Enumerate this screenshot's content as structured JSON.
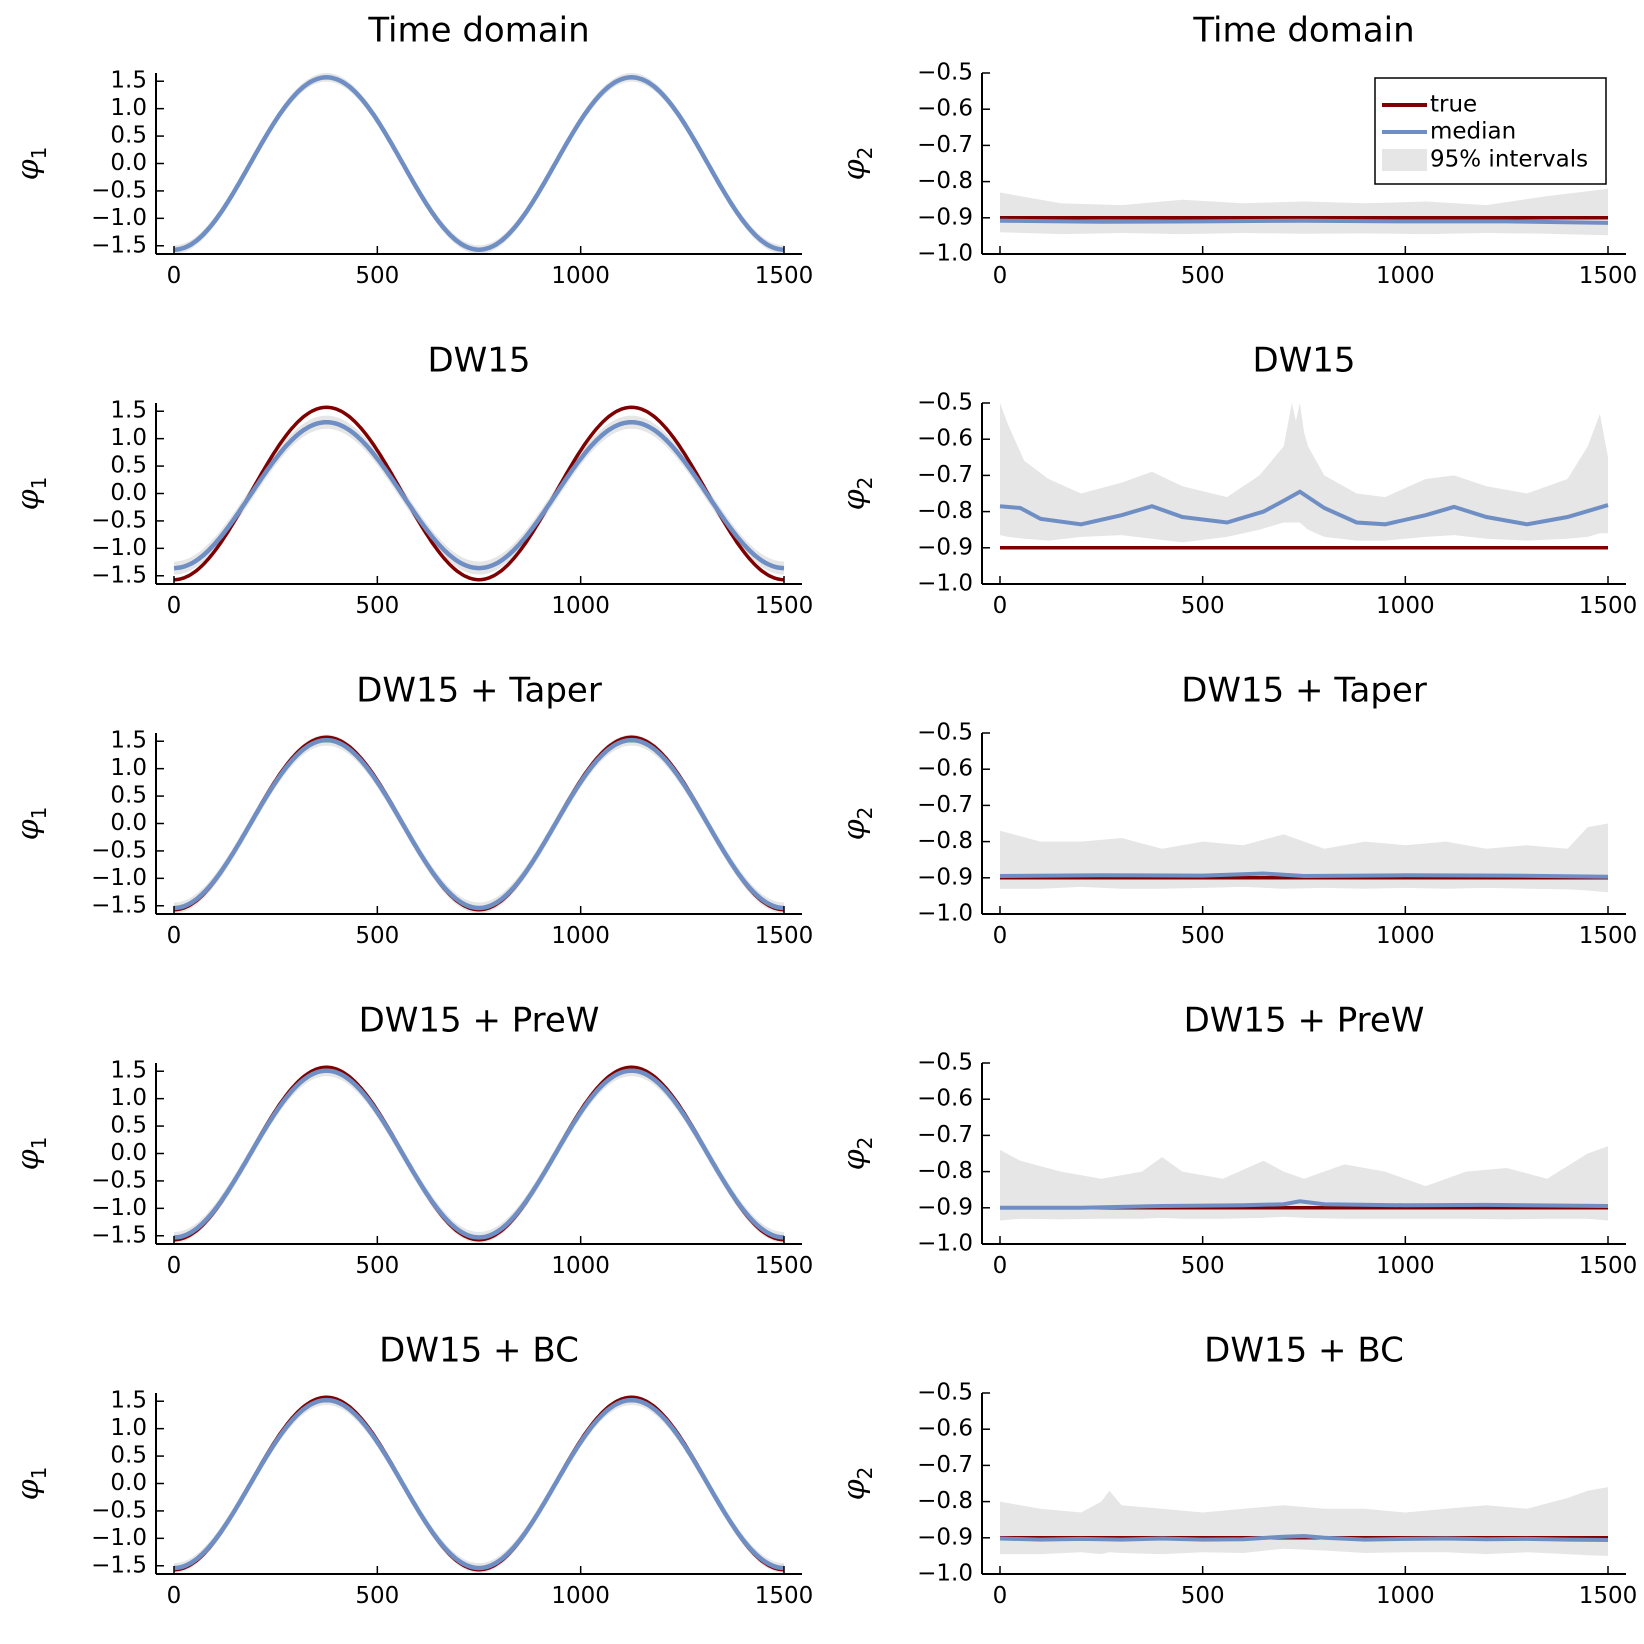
{
  "colors": {
    "true": "#7f0000",
    "median": "#6f8fc4",
    "interval": "#e6e6e6"
  },
  "legend": {
    "entries": [
      "true",
      "median",
      "95% intervals"
    ],
    "placement": "top-right of first right panel"
  },
  "chart_data": [
    {
      "type": "line",
      "title": "Time domain",
      "ylabel": "φ",
      "ylabel_sub": "1",
      "xlim": [
        0,
        1500
      ],
      "ylim": [
        -1.65,
        1.65
      ],
      "xticks": [
        0,
        500,
        1000,
        1500
      ],
      "yticks": [
        1.5,
        1.0,
        0.5,
        0.0,
        -0.5,
        -1.0,
        -1.5
      ],
      "ytick_labels": [
        "1.5",
        "1.0",
        "0.5",
        "0.0",
        "−0.5",
        "−1.0",
        "−1.5"
      ],
      "xtick_labels": [
        "0",
        "500",
        "1000",
        "1500"
      ],
      "series": [
        {
          "name": "true",
          "model": "cos",
          "amplitude": 1.5708
        },
        {
          "name": "median",
          "model": "cos",
          "amplitude": 1.5708,
          "bias": 0.0
        },
        {
          "name": "95% intervals",
          "half_width": 0.08
        }
      ]
    },
    {
      "type": "line",
      "title": "Time domain",
      "ylabel": "φ",
      "ylabel_sub": "2",
      "xlim": [
        0,
        1500
      ],
      "ylim": [
        -1.0,
        -0.5
      ],
      "xticks": [
        0,
        500,
        1000,
        1500
      ],
      "yticks": [
        -0.5,
        -0.6,
        -0.7,
        -0.8,
        -0.9,
        -1.0
      ],
      "ytick_labels": [
        "−0.5",
        "−0.6",
        "−0.7",
        "−0.8",
        "−0.9",
        "−1.0"
      ],
      "xtick_labels": [
        "0",
        "500",
        "1000",
        "1500"
      ],
      "show_legend": true,
      "true_value": -0.9,
      "median_x": [
        0,
        250,
        500,
        750,
        1000,
        1250,
        1500
      ],
      "median_y": [
        -0.908,
        -0.911,
        -0.91,
        -0.908,
        -0.91,
        -0.91,
        -0.914
      ],
      "band_x": [
        0,
        150,
        300,
        450,
        600,
        750,
        900,
        1050,
        1200,
        1350,
        1500
      ],
      "band_upper": [
        -0.83,
        -0.86,
        -0.865,
        -0.85,
        -0.86,
        -0.855,
        -0.86,
        -0.855,
        -0.865,
        -0.84,
        -0.82
      ],
      "band_lower": [
        -0.94,
        -0.945,
        -0.942,
        -0.945,
        -0.942,
        -0.944,
        -0.943,
        -0.945,
        -0.942,
        -0.944,
        -0.948
      ]
    },
    {
      "type": "line",
      "title": "DW15",
      "ylabel": "φ",
      "ylabel_sub": "1",
      "xlim": [
        0,
        1500
      ],
      "ylim": [
        -1.65,
        1.65
      ],
      "xticks": [
        0,
        500,
        1000,
        1500
      ],
      "yticks": [
        1.5,
        1.0,
        0.5,
        0.0,
        -0.5,
        -1.0,
        -1.5
      ],
      "ytick_labels": [
        "1.5",
        "1.0",
        "0.5",
        "0.0",
        "−0.5",
        "−1.0",
        "−1.5"
      ],
      "xtick_labels": [
        "0",
        "500",
        "1000",
        "1500"
      ],
      "series": [
        {
          "name": "true",
          "model": "cos",
          "amplitude": 1.5708
        },
        {
          "name": "median",
          "model": "cos",
          "amplitude": 1.33,
          "bias": -0.03
        },
        {
          "name": "95% intervals",
          "half_width": 0.12
        }
      ]
    },
    {
      "type": "line",
      "title": "DW15",
      "ylabel": "φ",
      "ylabel_sub": "2",
      "xlim": [
        0,
        1500
      ],
      "ylim": [
        -1.0,
        -0.5
      ],
      "xticks": [
        0,
        500,
        1000,
        1500
      ],
      "yticks": [
        -0.5,
        -0.6,
        -0.7,
        -0.8,
        -0.9,
        -1.0
      ],
      "ytick_labels": [
        "−0.5",
        "−0.6",
        "−0.7",
        "−0.8",
        "−0.9",
        "−1.0"
      ],
      "xtick_labels": [
        "0",
        "500",
        "1000",
        "1500"
      ],
      "true_value": -0.9,
      "median_x": [
        0,
        50,
        100,
        200,
        300,
        375,
        450,
        560,
        650,
        700,
        740,
        800,
        880,
        950,
        1050,
        1120,
        1200,
        1300,
        1400,
        1500
      ],
      "median_y": [
        -0.785,
        -0.79,
        -0.82,
        -0.835,
        -0.81,
        -0.785,
        -0.815,
        -0.83,
        -0.8,
        -0.77,
        -0.745,
        -0.79,
        -0.83,
        -0.835,
        -0.81,
        -0.787,
        -0.815,
        -0.835,
        -0.815,
        -0.782
      ],
      "band_x": [
        0,
        20,
        60,
        120,
        200,
        300,
        375,
        450,
        560,
        640,
        700,
        720,
        730,
        740,
        750,
        760,
        800,
        880,
        950,
        1050,
        1120,
        1200,
        1300,
        1400,
        1450,
        1480,
        1500
      ],
      "band_upper": [
        -0.5,
        -0.56,
        -0.66,
        -0.71,
        -0.75,
        -0.72,
        -0.69,
        -0.73,
        -0.76,
        -0.7,
        -0.62,
        -0.5,
        -0.55,
        -0.5,
        -0.58,
        -0.62,
        -0.7,
        -0.75,
        -0.76,
        -0.71,
        -0.7,
        -0.73,
        -0.75,
        -0.71,
        -0.62,
        -0.53,
        -0.65
      ],
      "band_lower": [
        -0.865,
        -0.87,
        -0.875,
        -0.88,
        -0.87,
        -0.865,
        -0.875,
        -0.885,
        -0.87,
        -0.85,
        -0.83,
        -0.83,
        -0.83,
        -0.83,
        -0.84,
        -0.85,
        -0.87,
        -0.88,
        -0.88,
        -0.87,
        -0.865,
        -0.875,
        -0.88,
        -0.875,
        -0.87,
        -0.86,
        -0.86
      ]
    },
    {
      "type": "line",
      "title": "DW15 + Taper",
      "ylabel": "φ",
      "ylabel_sub": "1",
      "xlim": [
        0,
        1500
      ],
      "ylim": [
        -1.65,
        1.65
      ],
      "xticks": [
        0,
        500,
        1000,
        1500
      ],
      "yticks": [
        1.5,
        1.0,
        0.5,
        0.0,
        -0.5,
        -1.0,
        -1.5
      ],
      "ytick_labels": [
        "1.5",
        "1.0",
        "0.5",
        "0.0",
        "−0.5",
        "−1.0",
        "−1.5"
      ],
      "xtick_labels": [
        "0",
        "500",
        "1000",
        "1500"
      ],
      "series": [
        {
          "name": "true",
          "model": "cos",
          "amplitude": 1.5708
        },
        {
          "name": "median",
          "model": "cos",
          "amplitude": 1.53,
          "bias": -0.01
        },
        {
          "name": "95% intervals",
          "half_width": 0.1
        }
      ]
    },
    {
      "type": "line",
      "title": "DW15 + Taper",
      "ylabel": "φ",
      "ylabel_sub": "2",
      "xlim": [
        0,
        1500
      ],
      "ylim": [
        -1.0,
        -0.5
      ],
      "xticks": [
        0,
        500,
        1000,
        1500
      ],
      "yticks": [
        -0.5,
        -0.6,
        -0.7,
        -0.8,
        -0.9,
        -1.0
      ],
      "ytick_labels": [
        "−0.5",
        "−0.6",
        "−0.7",
        "−0.8",
        "−0.9",
        "−1.0"
      ],
      "xtick_labels": [
        "0",
        "500",
        "1000",
        "1500"
      ],
      "true_value": -0.9,
      "median_x": [
        0,
        250,
        500,
        650,
        750,
        1000,
        1250,
        1500
      ],
      "median_y": [
        -0.895,
        -0.893,
        -0.894,
        -0.888,
        -0.895,
        -0.893,
        -0.894,
        -0.897
      ],
      "band_x": [
        0,
        100,
        200,
        300,
        400,
        500,
        600,
        700,
        800,
        900,
        1000,
        1100,
        1200,
        1300,
        1400,
        1450,
        1500
      ],
      "band_upper": [
        -0.77,
        -0.8,
        -0.8,
        -0.79,
        -0.82,
        -0.8,
        -0.81,
        -0.78,
        -0.82,
        -0.8,
        -0.81,
        -0.8,
        -0.82,
        -0.81,
        -0.82,
        -0.76,
        -0.75
      ],
      "band_lower": [
        -0.93,
        -0.93,
        -0.925,
        -0.93,
        -0.93,
        -0.928,
        -0.925,
        -0.93,
        -0.928,
        -0.93,
        -0.928,
        -0.93,
        -0.928,
        -0.93,
        -0.932,
        -0.935,
        -0.94
      ]
    },
    {
      "type": "line",
      "title": "DW15 + PreW",
      "ylabel": "φ",
      "ylabel_sub": "1",
      "xlim": [
        0,
        1500
      ],
      "ylim": [
        -1.65,
        1.65
      ],
      "xticks": [
        0,
        500,
        1000,
        1500
      ],
      "yticks": [
        1.5,
        1.0,
        0.5,
        0.0,
        -0.5,
        -1.0,
        -1.5
      ],
      "ytick_labels": [
        "1.5",
        "1.0",
        "0.5",
        "0.0",
        "−0.5",
        "−1.0",
        "−1.5"
      ],
      "xtick_labels": [
        "0",
        "500",
        "1000",
        "1500"
      ],
      "series": [
        {
          "name": "true",
          "model": "cos",
          "amplitude": 1.5708
        },
        {
          "name": "median",
          "model": "cos",
          "amplitude": 1.52,
          "bias": -0.01
        },
        {
          "name": "95% intervals",
          "half_width": 0.1
        }
      ]
    },
    {
      "type": "line",
      "title": "DW15 + PreW",
      "ylabel": "φ",
      "ylabel_sub": "2",
      "xlim": [
        0,
        1500
      ],
      "ylim": [
        -1.0,
        -0.5
      ],
      "xticks": [
        0,
        500,
        1000,
        1500
      ],
      "yticks": [
        -0.5,
        -0.6,
        -0.7,
        -0.8,
        -0.9,
        -1.0
      ],
      "ytick_labels": [
        "−0.5",
        "−0.6",
        "−0.7",
        "−0.8",
        "−0.9",
        "−1.0"
      ],
      "xtick_labels": [
        "0",
        "500",
        "1000",
        "1500"
      ],
      "true_value": -0.9,
      "median_x": [
        0,
        200,
        400,
        600,
        700,
        740,
        800,
        1000,
        1200,
        1400,
        1500
      ],
      "median_y": [
        -0.9,
        -0.9,
        -0.895,
        -0.893,
        -0.89,
        -0.882,
        -0.89,
        -0.893,
        -0.892,
        -0.894,
        -0.895
      ],
      "band_x": [
        0,
        50,
        150,
        250,
        350,
        400,
        450,
        550,
        650,
        700,
        750,
        850,
        950,
        1050,
        1150,
        1250,
        1350,
        1450,
        1500
      ],
      "band_upper": [
        -0.74,
        -0.77,
        -0.8,
        -0.82,
        -0.8,
        -0.76,
        -0.8,
        -0.82,
        -0.77,
        -0.8,
        -0.82,
        -0.78,
        -0.8,
        -0.84,
        -0.8,
        -0.79,
        -0.82,
        -0.75,
        -0.73
      ],
      "band_lower": [
        -0.935,
        -0.93,
        -0.932,
        -0.93,
        -0.93,
        -0.928,
        -0.93,
        -0.93,
        -0.928,
        -0.925,
        -0.928,
        -0.93,
        -0.93,
        -0.93,
        -0.93,
        -0.932,
        -0.93,
        -0.93,
        -0.935
      ]
    },
    {
      "type": "line",
      "title": "DW15 + BC",
      "ylabel": "φ",
      "ylabel_sub": "1",
      "xlim": [
        0,
        1500
      ],
      "ylim": [
        -1.65,
        1.65
      ],
      "xticks": [
        0,
        500,
        1000,
        1500
      ],
      "yticks": [
        1.5,
        1.0,
        0.5,
        0.0,
        -0.5,
        -1.0,
        -1.5
      ],
      "ytick_labels": [
        "1.5",
        "1.0",
        "0.5",
        "0.0",
        "−0.5",
        "−1.0",
        "−1.5"
      ],
      "xtick_labels": [
        "0",
        "500",
        "1000",
        "1500"
      ],
      "series": [
        {
          "name": "true",
          "model": "cos",
          "amplitude": 1.5708
        },
        {
          "name": "median",
          "model": "cos",
          "amplitude": 1.53,
          "bias": -0.01
        },
        {
          "name": "95% intervals",
          "half_width": 0.09
        }
      ]
    },
    {
      "type": "line",
      "title": "DW15 + BC",
      "ylabel": "φ",
      "ylabel_sub": "2",
      "xlim": [
        0,
        1500
      ],
      "ylim": [
        -1.0,
        -0.5
      ],
      "xticks": [
        0,
        500,
        1000,
        1500
      ],
      "yticks": [
        -0.5,
        -0.6,
        -0.7,
        -0.8,
        -0.9,
        -1.0
      ],
      "ytick_labels": [
        "−0.5",
        "−0.6",
        "−0.7",
        "−0.8",
        "−0.9",
        "−1.0"
      ],
      "xtick_labels": [
        "0",
        "500",
        "1000",
        "1500"
      ],
      "true_value": -0.9,
      "median_x": [
        0,
        100,
        200,
        300,
        400,
        500,
        600,
        700,
        750,
        800,
        900,
        1000,
        1100,
        1200,
        1300,
        1400,
        1500
      ],
      "median_y": [
        -0.902,
        -0.905,
        -0.903,
        -0.905,
        -0.902,
        -0.905,
        -0.904,
        -0.897,
        -0.895,
        -0.9,
        -0.905,
        -0.903,
        -0.902,
        -0.904,
        -0.903,
        -0.905,
        -0.906
      ],
      "band_x": [
        0,
        100,
        200,
        250,
        270,
        300,
        400,
        500,
        600,
        700,
        800,
        900,
        1000,
        1100,
        1200,
        1300,
        1400,
        1450,
        1500
      ],
      "band_upper": [
        -0.8,
        -0.82,
        -0.83,
        -0.8,
        -0.77,
        -0.81,
        -0.82,
        -0.83,
        -0.82,
        -0.81,
        -0.82,
        -0.82,
        -0.83,
        -0.82,
        -0.81,
        -0.82,
        -0.79,
        -0.77,
        -0.76
      ],
      "band_lower": [
        -0.945,
        -0.945,
        -0.94,
        -0.945,
        -0.94,
        -0.942,
        -0.945,
        -0.94,
        -0.942,
        -0.93,
        -0.935,
        -0.942,
        -0.94,
        -0.94,
        -0.945,
        -0.94,
        -0.945,
        -0.948,
        -0.95
      ]
    }
  ]
}
